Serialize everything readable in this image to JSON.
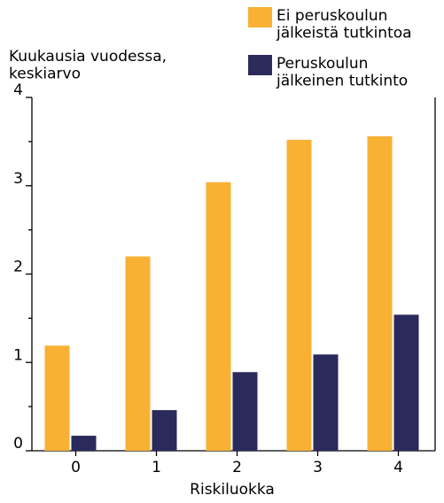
{
  "chart_data": {
    "type": "bar",
    "y_label": "Kuukausia vuodessa,\nkeskiarvo",
    "x_label": "Riskiluokka",
    "categories": [
      "0",
      "1",
      "2",
      "3",
      "4"
    ],
    "series": [
      {
        "name": "Ei peruskoulun\njälkeistä tutkintoa",
        "color": "#f8b133",
        "values": [
          1.19,
          2.2,
          3.04,
          3.52,
          3.56
        ]
      },
      {
        "name": "Peruskoulun\njälkeinen tutkinto",
        "color": "#2b2a5c",
        "values": [
          0.17,
          0.46,
          0.89,
          1.09,
          1.54
        ]
      }
    ],
    "ylim": [
      0,
      4
    ],
    "yticks": [
      0,
      1,
      2,
      3,
      4
    ],
    "minor_yticks": [
      0.5,
      1.5,
      2.5,
      3.5
    ]
  }
}
